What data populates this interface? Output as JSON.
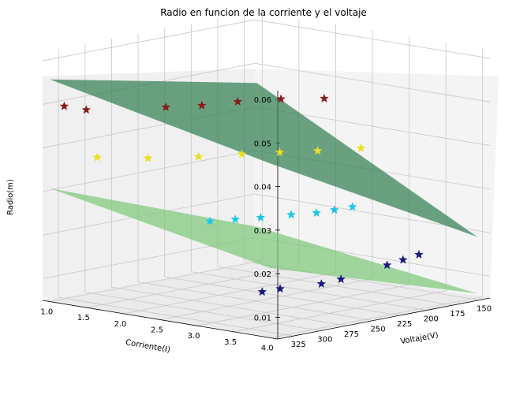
{
  "chart_data": {
    "type": "scatter3d",
    "title": "Radio en funcion de la corriente y el voltaje",
    "xlabel": "Corriente(I)",
    "ylabel": "Voltaje(V)",
    "zlabel": "Radio(m)",
    "xticks": [
      "1.0",
      "1.5",
      "2.0",
      "2.5",
      "3.0",
      "3.5",
      "4.0"
    ],
    "yticks": [
      "325",
      "300",
      "275",
      "250",
      "225",
      "200",
      "175",
      "150"
    ],
    "zticks": [
      "0.01",
      "0.02",
      "0.03",
      "0.04",
      "0.05",
      "0.06"
    ],
    "xlim": [
      0.9,
      4.1
    ],
    "ylim": [
      140,
      340
    ],
    "zlim": [
      0.005,
      0.062
    ],
    "grid": true,
    "surfaces": [
      {
        "color": "#2e7d4f",
        "corners": [
          [
            1.0,
            340,
            0.056
          ],
          [
            1.0,
            145,
            0.046
          ],
          [
            4.0,
            145,
            0.019
          ],
          [
            4.0,
            340,
            0.045
          ]
        ]
      },
      {
        "color": "#7bc878",
        "corners": [
          [
            1.0,
            340,
            0.031
          ],
          [
            1.0,
            145,
            0.013
          ],
          [
            4.0,
            145,
            0.006
          ],
          [
            4.0,
            340,
            0.021
          ]
        ]
      }
    ],
    "series": [
      {
        "color": "#8b1a1a",
        "points": [
          [
            1.05,
            330,
            0.0495
          ],
          [
            1.35,
            330,
            0.0495
          ],
          [
            2.0,
            300,
            0.0505
          ],
          [
            2.2,
            280,
            0.0505
          ],
          [
            2.4,
            260,
            0.051
          ],
          [
            2.7,
            240,
            0.0515
          ],
          [
            3.0,
            220,
            0.0515
          ]
        ]
      },
      {
        "color": "#e8e020",
        "points": [
          [
            1.5,
            330,
            0.039
          ],
          [
            1.9,
            310,
            0.039
          ],
          [
            2.3,
            290,
            0.0395
          ],
          [
            2.6,
            270,
            0.04
          ],
          [
            2.9,
            255,
            0.0405
          ],
          [
            3.2,
            240,
            0.041
          ],
          [
            3.5,
            220,
            0.0415
          ]
        ]
      },
      {
        "color": "#19c8e6",
        "points": [
          [
            2.6,
            300,
            0.026
          ],
          [
            2.8,
            290,
            0.0265
          ],
          [
            3.0,
            280,
            0.027
          ],
          [
            3.2,
            265,
            0.0275
          ],
          [
            3.4,
            255,
            0.028
          ],
          [
            3.5,
            245,
            0.0285
          ],
          [
            3.6,
            235,
            0.029
          ]
        ]
      },
      {
        "color": "#1a1a80",
        "points": [
          [
            3.6,
            320,
            0.0135
          ],
          [
            3.7,
            310,
            0.014
          ],
          [
            3.9,
            285,
            0.0145
          ],
          [
            3.95,
            270,
            0.015
          ],
          [
            4.0,
            230,
            0.0165
          ],
          [
            4.0,
            215,
            0.017
          ],
          [
            4.0,
            200,
            0.0175
          ]
        ]
      }
    ]
  }
}
